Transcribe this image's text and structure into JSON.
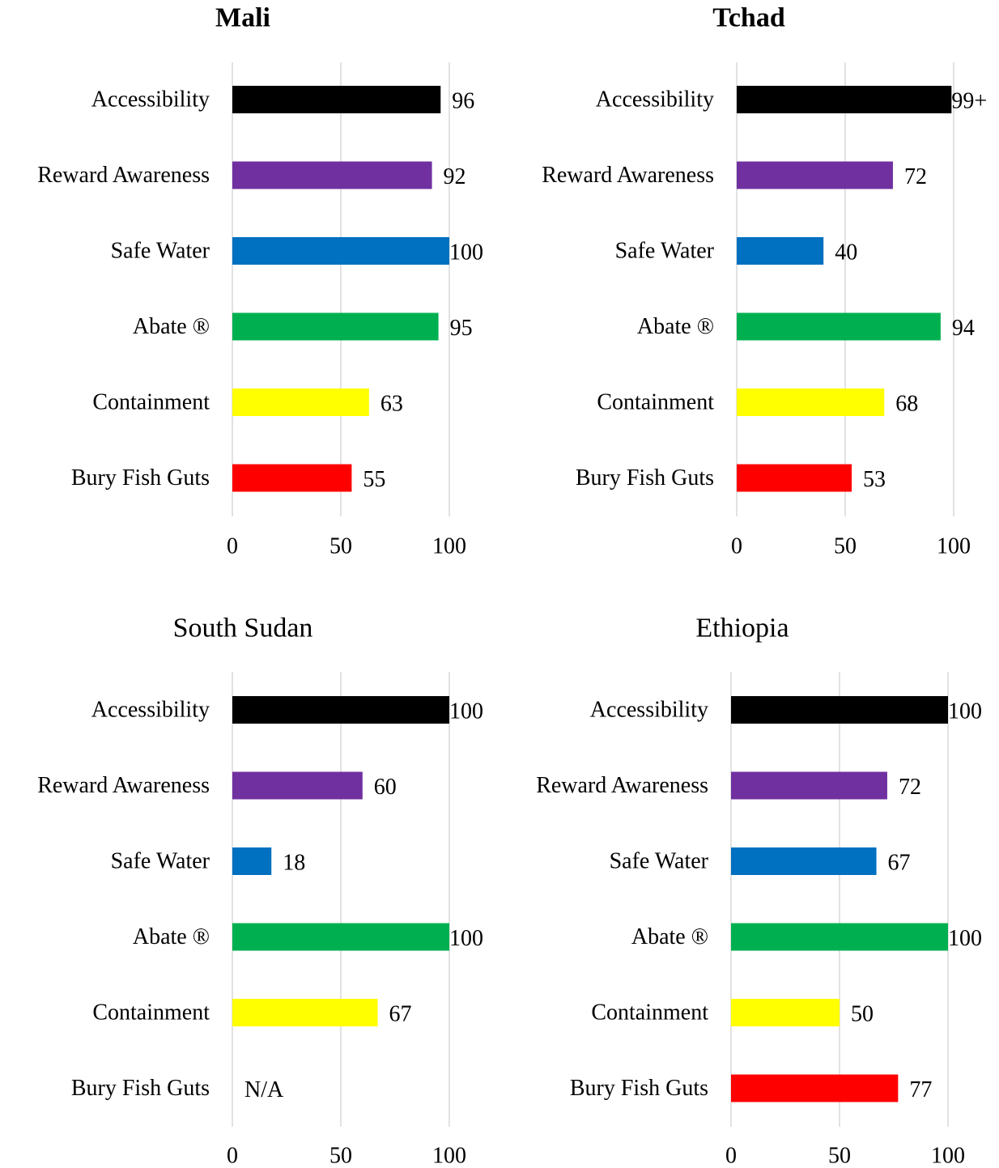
{
  "chart_data": [
    {
      "type": "bar",
      "orientation": "horizontal",
      "title": "Mali",
      "title_bold": true,
      "categories": [
        "Accessibility",
        "Reward Awareness",
        "Safe Water",
        "Abate ®",
        "Containment",
        "Bury Fish Guts"
      ],
      "values": [
        96,
        92,
        100,
        95,
        63,
        55
      ],
      "data_labels": [
        "96",
        "92",
        "100",
        "95",
        "63",
        "55"
      ],
      "xlim": [
        0,
        100
      ],
      "xticks": [
        "0",
        "50",
        "100"
      ],
      "grid": true
    },
    {
      "type": "bar",
      "orientation": "horizontal",
      "title": "Tchad",
      "title_bold": true,
      "categories": [
        "Accessibility",
        "Reward Awareness",
        "Safe Water",
        "Abate ®",
        "Containment",
        "Bury Fish Guts"
      ],
      "values": [
        99,
        72,
        40,
        94,
        68,
        53
      ],
      "data_labels": [
        "99+",
        "72",
        "40",
        "94",
        "68",
        "53"
      ],
      "xlim": [
        0,
        100
      ],
      "xticks": [
        "0",
        "50",
        "100"
      ],
      "grid": true
    },
    {
      "type": "bar",
      "orientation": "horizontal",
      "title": "South Sudan",
      "title_bold": false,
      "categories": [
        "Accessibility",
        "Reward Awareness",
        "Safe Water",
        "Abate ®",
        "Containment",
        "Bury Fish Guts"
      ],
      "values": [
        100,
        60,
        18,
        100,
        67,
        null
      ],
      "data_labels": [
        "100",
        "60",
        "18",
        "100",
        "67",
        "N/A"
      ],
      "xlim": [
        0,
        100
      ],
      "xticks": [
        "0",
        "50",
        "100"
      ],
      "grid": true
    },
    {
      "type": "bar",
      "orientation": "horizontal",
      "title": "Ethiopia",
      "title_bold": false,
      "categories": [
        "Accessibility",
        "Reward Awareness",
        "Safe Water",
        "Abate ®",
        "Containment",
        "Bury Fish Guts"
      ],
      "values": [
        100,
        72,
        67,
        100,
        50,
        77
      ],
      "data_labels": [
        "100",
        "72",
        "67",
        "100",
        "50",
        "77"
      ],
      "xlim": [
        0,
        100
      ],
      "xticks": [
        "0",
        "50",
        "100"
      ],
      "grid": true
    }
  ],
  "colors": [
    "#000000",
    "#7030a0",
    "#0070c0",
    "#00b050",
    "#ffff00",
    "#ff0000"
  ],
  "gridline_color": "#d9d9d9"
}
